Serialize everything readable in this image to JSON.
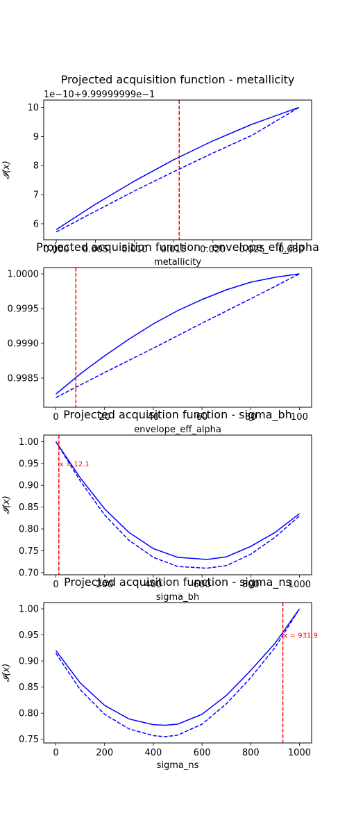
{
  "chart_data": [
    {
      "type": "line",
      "title": "Projected acquisition function - metallicity",
      "xlabel": "metallicity",
      "ylabel": "𝓘(x)",
      "offset_text": "1e−10+9.99999999e−1",
      "xlim": [
        -0.0016,
        0.0326
      ],
      "ylim": [
        5.45,
        10.25
      ],
      "xticks": [
        0,
        0.005,
        0.01,
        0.015,
        0.02,
        0.025,
        0.03
      ],
      "xtick_labels": [
        "0.000",
        "0.005",
        "0.010",
        "0.015",
        "0.020",
        "0.025",
        "0.030"
      ],
      "yticks": [
        6,
        7,
        8,
        9,
        10
      ],
      "ytick_labels": [
        "6",
        "7",
        "8",
        "9",
        "10"
      ],
      "marker_x": 0.0157,
      "marker_label": "",
      "series": [
        {
          "style": "solid",
          "color": "#0000ff",
          "x": [
            0,
            0.005,
            0.01,
            0.015,
            0.02,
            0.025,
            0.031
          ],
          "y": [
            5.8,
            6.67,
            7.47,
            8.2,
            8.85,
            9.42,
            10.0
          ]
        },
        {
          "style": "dashed",
          "color": "#0000ff",
          "x": [
            0,
            0.005,
            0.01,
            0.015,
            0.02,
            0.025,
            0.031
          ],
          "y": [
            5.72,
            6.43,
            7.13,
            7.79,
            8.43,
            9.04,
            10.0
          ]
        }
      ]
    },
    {
      "type": "line",
      "title": "Projected acquisition function - envelope_eff_alpha",
      "xlabel": "envelope_eff_alpha",
      "ylabel": "",
      "offset_text": "",
      "xlim": [
        -5,
        105
      ],
      "ylim": [
        0.99808,
        1.00009
      ],
      "xticks": [
        0,
        20,
        40,
        60,
        80,
        100
      ],
      "xtick_labels": [
        "0",
        "20",
        "40",
        "60",
        "80",
        "100"
      ],
      "yticks": [
        0.9985,
        0.999,
        0.9995,
        1.0
      ],
      "ytick_labels": [
        "0.9985",
        "0.9990",
        "0.9995",
        "1.0000"
      ],
      "marker_x": 8.2,
      "marker_label": "",
      "series": [
        {
          "style": "solid",
          "color": "#0000ff",
          "x": [
            0,
            10,
            20,
            30,
            40,
            50,
            60,
            70,
            80,
            90,
            100
          ],
          "y": [
            0.99827,
            0.99856,
            0.99882,
            0.99906,
            0.99928,
            0.99947,
            0.99963,
            0.99977,
            0.99988,
            0.99995,
            1.0
          ]
        },
        {
          "style": "dashed",
          "color": "#0000ff",
          "x": [
            0,
            20,
            40,
            60,
            80,
            100
          ],
          "y": [
            0.99822,
            0.99858,
            0.99893,
            0.99929,
            0.99964,
            1.0
          ]
        }
      ]
    },
    {
      "type": "line",
      "title": "Projected acquisition function - sigma_bh",
      "xlabel": "sigma_bh",
      "ylabel": "𝓘(x)",
      "offset_text": "",
      "xlim": [
        -50,
        1050
      ],
      "ylim": [
        0.695,
        1.015
      ],
      "xticks": [
        0,
        200,
        400,
        600,
        800,
        1000
      ],
      "xtick_labels": [
        "0",
        "200",
        "400",
        "600",
        "800",
        "1000"
      ],
      "yticks": [
        0.7,
        0.75,
        0.8,
        0.85,
        0.9,
        0.95,
        1.0
      ],
      "ytick_labels": [
        "0.70",
        "0.75",
        "0.80",
        "0.85",
        "0.90",
        "0.95",
        "1.00"
      ],
      "marker_x": 12.1,
      "marker_label": "x = 12.1",
      "marker_label_y": 0.95,
      "series": [
        {
          "style": "solid",
          "color": "#0000ff",
          "x": [
            0,
            100,
            200,
            300,
            400,
            500,
            620,
            700,
            800,
            900,
            1000
          ],
          "y": [
            1.0,
            0.917,
            0.846,
            0.792,
            0.755,
            0.735,
            0.73,
            0.736,
            0.76,
            0.792,
            0.835
          ]
        },
        {
          "style": "dashed",
          "color": "#0000ff",
          "x": [
            0,
            100,
            200,
            300,
            400,
            500,
            620,
            700,
            800,
            900,
            1000
          ],
          "y": [
            1.0,
            0.91,
            0.832,
            0.774,
            0.735,
            0.714,
            0.71,
            0.716,
            0.742,
            0.781,
            0.83
          ]
        }
      ]
    },
    {
      "type": "line",
      "title": "Projected acquisition function - sigma_ns",
      "xlabel": "sigma_ns",
      "ylabel": "𝓘(x)",
      "offset_text": "",
      "xlim": [
        -50,
        1050
      ],
      "ylim": [
        0.743,
        1.012
      ],
      "xticks": [
        0,
        200,
        400,
        600,
        800,
        1000
      ],
      "xtick_labels": [
        "0",
        "200",
        "400",
        "600",
        "800",
        "1000"
      ],
      "yticks": [
        0.75,
        0.8,
        0.85,
        0.9,
        0.95,
        1.0
      ],
      "ytick_labels": [
        "0.75",
        "0.80",
        "0.85",
        "0.90",
        "0.95",
        "1.00"
      ],
      "marker_x": 931.9,
      "marker_label": "x = 931.9",
      "marker_label_y": 0.95,
      "series": [
        {
          "style": "solid",
          "color": "#0000ff",
          "x": [
            0,
            100,
            200,
            300,
            400,
            450,
            500,
            600,
            700,
            800,
            900,
            1000
          ],
          "y": [
            0.92,
            0.858,
            0.815,
            0.789,
            0.778,
            0.777,
            0.779,
            0.798,
            0.834,
            0.882,
            0.934,
            1.0
          ]
        },
        {
          "style": "dashed",
          "color": "#0000ff",
          "x": [
            0,
            100,
            200,
            300,
            400,
            450,
            500,
            600,
            700,
            800,
            900,
            1000
          ],
          "y": [
            0.915,
            0.845,
            0.798,
            0.77,
            0.757,
            0.755,
            0.758,
            0.779,
            0.818,
            0.868,
            0.926,
            1.0
          ]
        }
      ]
    }
  ],
  "marker_color": "#ff0000"
}
